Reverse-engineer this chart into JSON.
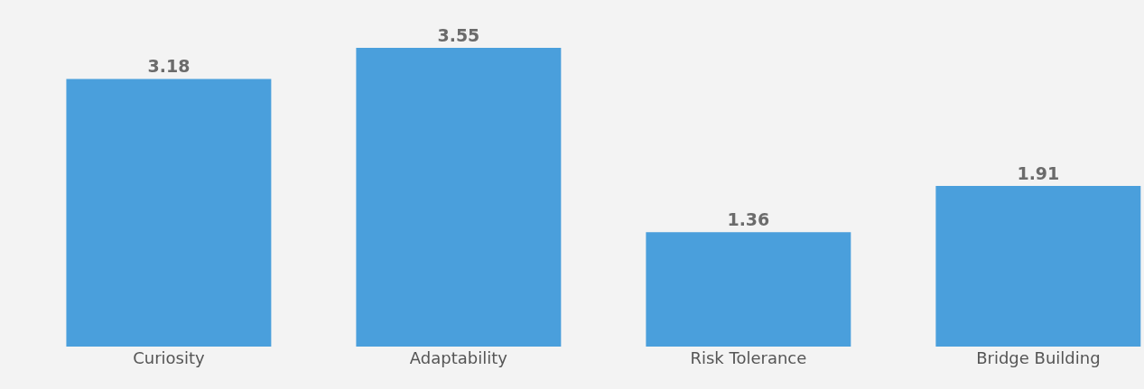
{
  "chart_data": {
    "type": "bar",
    "categories": [
      "Curiosity",
      "Adaptability",
      "Risk Tolerance",
      "Bridge Building"
    ],
    "values": [
      3.18,
      3.55,
      1.36,
      1.91
    ],
    "color": "#4a9fdc",
    "data_labels": true,
    "grid": false
  }
}
